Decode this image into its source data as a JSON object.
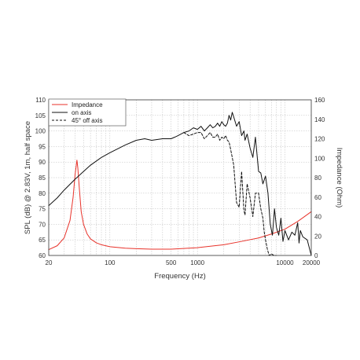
{
  "chart_data": {
    "type": "line",
    "xlabel": "Frequency (Hz)",
    "ylabel": "SPL (dB) @ 2.83V, 1m, half space",
    "ylabel_right": "Impedance (Ohm)",
    "xscale": "log",
    "xlim": [
      20,
      20000
    ],
    "ylim": [
      60,
      110
    ],
    "ylim_right": [
      0,
      160
    ],
    "x_tick_labels": [
      "20",
      "100",
      "500",
      "1000",
      "10000",
      "20000"
    ],
    "y_tick_labels": [
      "60",
      "65",
      "70",
      "75",
      "80",
      "85",
      "90",
      "95",
      "100",
      "105",
      "110"
    ],
    "y_right_tick_labels": [
      "0",
      "20",
      "40",
      "60",
      "80",
      "100",
      "120",
      "140",
      "160"
    ],
    "grid": true,
    "legend_position": "top-left",
    "series": [
      {
        "name": "Impedance",
        "axis": "right",
        "color": "#e8322a",
        "style": "solid",
        "x": [
          20,
          25,
          30,
          35,
          38,
          40,
          42,
          43,
          45,
          47,
          50,
          55,
          60,
          70,
          80,
          100,
          150,
          200,
          300,
          500,
          1000,
          2000,
          3000,
          5000,
          7000,
          10000,
          14000,
          20000
        ],
        "y": [
          6,
          10,
          18,
          36,
          60,
          83,
          98,
          90,
          66,
          45,
          32,
          22,
          17,
          13,
          11,
          9,
          7.5,
          7,
          6.5,
          6.5,
          8,
          11,
          14,
          18,
          22,
          27,
          35,
          45
        ]
      },
      {
        "name": "on axis",
        "axis": "left",
        "color": "#111111",
        "style": "solid",
        "x": [
          20,
          25,
          30,
          40,
          50,
          60,
          80,
          100,
          150,
          200,
          250,
          300,
          400,
          500,
          550,
          600,
          700,
          800,
          900,
          1000,
          1100,
          1200,
          1300,
          1400,
          1500,
          1600,
          1700,
          1800,
          1900,
          2000,
          2100,
          2200,
          2300,
          2400,
          2500,
          2600,
          2800,
          3000,
          3200,
          3400,
          3500,
          3700,
          4000,
          4300,
          4600,
          5000,
          5300,
          5600,
          6000,
          6400,
          6800,
          7200,
          7600,
          8000,
          8500,
          9000,
          9500,
          10000,
          11000,
          12000,
          13000,
          14000,
          14500,
          15000,
          16000,
          18000,
          20000
        ],
        "y": [
          76,
          78.5,
          81,
          84.5,
          87,
          89,
          91.5,
          93,
          95.5,
          97,
          97.5,
          97,
          97.5,
          97.5,
          98,
          98.5,
          99.5,
          100,
          101,
          100.5,
          101.5,
          100,
          101,
          102,
          101,
          101.5,
          102.5,
          101.5,
          103,
          102,
          101.5,
          102.5,
          105,
          103.5,
          106,
          104.5,
          101.5,
          103,
          98.5,
          100,
          97,
          99,
          94.5,
          91.5,
          98,
          87,
          86.5,
          83,
          85.5,
          80,
          70,
          66.5,
          75,
          69,
          66.5,
          72,
          64.5,
          68,
          65,
          67.5,
          66.5,
          70.5,
          64,
          68,
          66,
          65,
          60
        ]
      },
      {
        "name": "45° off axis",
        "axis": "left",
        "color": "#111111",
        "style": "dashed",
        "x": [
          700,
          800,
          900,
          1000,
          1100,
          1200,
          1300,
          1400,
          1500,
          1600,
          1700,
          1800,
          1900,
          2000,
          2100,
          2200,
          2300,
          2400,
          2500,
          2600,
          2800,
          3000,
          3200,
          3400,
          3500,
          3700,
          4000,
          4300,
          4600,
          5000,
          5300,
          5600,
          5800,
          6000,
          6300,
          6600,
          7000,
          7500,
          8000
        ],
        "y": [
          99.5,
          98.5,
          99,
          99.5,
          99.5,
          97.5,
          98.5,
          99.5,
          98,
          98,
          99,
          97,
          98,
          97.5,
          98.5,
          97,
          96.5,
          94,
          91.5,
          89,
          77,
          75.5,
          87,
          74.5,
          73,
          83,
          78.5,
          72.5,
          80,
          80,
          75,
          72,
          67.5,
          65,
          62,
          60,
          60.5,
          60,
          60
        ]
      }
    ]
  }
}
